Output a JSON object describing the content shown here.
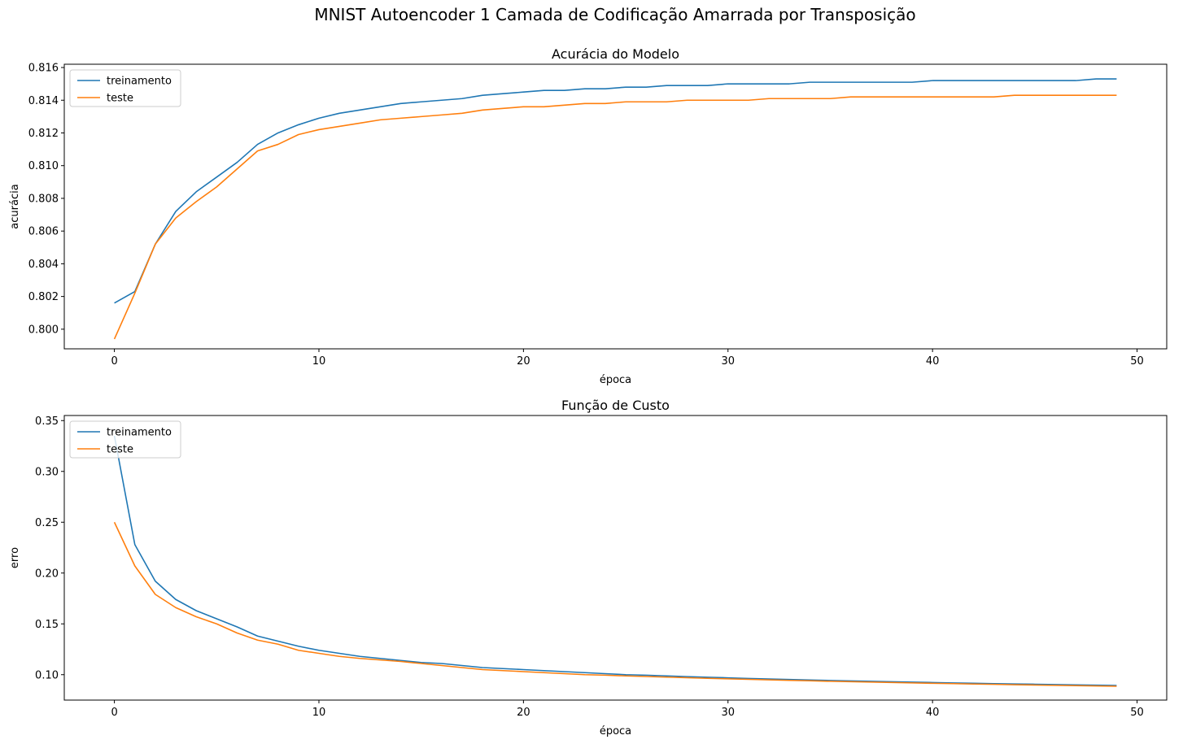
{
  "figure": {
    "suptitle": "MNIST Autoencoder 1 Camada de Codificação Amarrada por Transposição"
  },
  "colors": {
    "treinamento": "#1f77b4",
    "teste": "#ff7f0e"
  },
  "chart_data": [
    {
      "type": "line",
      "title": "Acurácia do Modelo",
      "xlabel": "época",
      "ylabel": "acurácia",
      "xlim": [
        -2.45,
        51.45
      ],
      "ylim": [
        0.7988,
        0.8162
      ],
      "xticks": [
        0,
        10,
        20,
        30,
        40,
        50
      ],
      "yticks": [
        0.8,
        0.802,
        0.804,
        0.806,
        0.808,
        0.81,
        0.812,
        0.814,
        0.816
      ],
      "ytick_labels": [
        "0.800",
        "0.802",
        "0.804",
        "0.806",
        "0.808",
        "0.810",
        "0.812",
        "0.814",
        "0.816"
      ],
      "grid": false,
      "legend": "upper-left",
      "x": [
        0,
        1,
        2,
        3,
        4,
        5,
        6,
        7,
        8,
        9,
        10,
        11,
        12,
        13,
        14,
        15,
        16,
        17,
        18,
        19,
        20,
        21,
        22,
        23,
        24,
        25,
        26,
        27,
        28,
        29,
        30,
        31,
        32,
        33,
        34,
        35,
        36,
        37,
        38,
        39,
        40,
        41,
        42,
        43,
        44,
        45,
        46,
        47,
        48,
        49
      ],
      "series": [
        {
          "name": "treinamento",
          "values": [
            0.8016,
            0.8023,
            0.8052,
            0.8072,
            0.8084,
            0.8093,
            0.8102,
            0.8113,
            0.812,
            0.8125,
            0.8129,
            0.8132,
            0.8134,
            0.8136,
            0.8138,
            0.8139,
            0.814,
            0.8141,
            0.8143,
            0.8144,
            0.8145,
            0.8146,
            0.8146,
            0.8147,
            0.8147,
            0.8148,
            0.8148,
            0.8149,
            0.8149,
            0.8149,
            0.815,
            0.815,
            0.815,
            0.815,
            0.8151,
            0.8151,
            0.8151,
            0.8151,
            0.8151,
            0.8151,
            0.8152,
            0.8152,
            0.8152,
            0.8152,
            0.8152,
            0.8152,
            0.8152,
            0.8152,
            0.8153,
            0.8153
          ]
        },
        {
          "name": "teste",
          "values": [
            0.7994,
            0.8022,
            0.8052,
            0.8068,
            0.8078,
            0.8087,
            0.8098,
            0.8109,
            0.8113,
            0.8119,
            0.8122,
            0.8124,
            0.8126,
            0.8128,
            0.8129,
            0.813,
            0.8131,
            0.8132,
            0.8134,
            0.8135,
            0.8136,
            0.8136,
            0.8137,
            0.8138,
            0.8138,
            0.8139,
            0.8139,
            0.8139,
            0.814,
            0.814,
            0.814,
            0.814,
            0.8141,
            0.8141,
            0.8141,
            0.8141,
            0.8142,
            0.8142,
            0.8142,
            0.8142,
            0.8142,
            0.8142,
            0.8142,
            0.8142,
            0.8143,
            0.8143,
            0.8143,
            0.8143,
            0.8143,
            0.8143
          ]
        }
      ]
    },
    {
      "type": "line",
      "title": "Função de Custo",
      "xlabel": "época",
      "ylabel": "erro",
      "xlim": [
        -2.45,
        51.45
      ],
      "ylim": [
        0.075,
        0.355
      ],
      "xticks": [
        0,
        10,
        20,
        30,
        40,
        50
      ],
      "yticks": [
        0.1,
        0.15,
        0.2,
        0.25,
        0.3,
        0.35
      ],
      "ytick_labels": [
        "0.10",
        "0.15",
        "0.20",
        "0.25",
        "0.30",
        "0.35"
      ],
      "grid": false,
      "legend": "upper-left",
      "x": [
        0,
        1,
        2,
        3,
        4,
        5,
        6,
        7,
        8,
        9,
        10,
        11,
        12,
        13,
        14,
        15,
        16,
        17,
        18,
        19,
        20,
        21,
        22,
        23,
        24,
        25,
        26,
        27,
        28,
        29,
        30,
        31,
        32,
        33,
        34,
        35,
        36,
        37,
        38,
        39,
        40,
        41,
        42,
        43,
        44,
        45,
        46,
        47,
        48,
        49
      ],
      "series": [
        {
          "name": "treinamento",
          "values": [
            0.335,
            0.228,
            0.192,
            0.174,
            0.163,
            0.155,
            0.147,
            0.138,
            0.133,
            0.128,
            0.124,
            0.121,
            0.118,
            0.116,
            0.114,
            0.112,
            0.111,
            0.109,
            0.107,
            0.106,
            0.105,
            0.104,
            0.103,
            0.102,
            0.101,
            0.1,
            0.0995,
            0.0988,
            0.0981,
            0.0975,
            0.0969,
            0.0963,
            0.0958,
            0.0953,
            0.0948,
            0.0943,
            0.0939,
            0.0935,
            0.0931,
            0.0927,
            0.0923,
            0.0919,
            0.0916,
            0.0912,
            0.0909,
            0.0906,
            0.0903,
            0.09,
            0.0897,
            0.0894
          ]
        },
        {
          "name": "teste",
          "values": [
            0.25,
            0.207,
            0.179,
            0.166,
            0.157,
            0.15,
            0.141,
            0.134,
            0.13,
            0.124,
            0.121,
            0.118,
            0.116,
            0.1145,
            0.113,
            0.111,
            0.109,
            0.107,
            0.105,
            0.104,
            0.103,
            0.102,
            0.101,
            0.1,
            0.0995,
            0.0988,
            0.0982,
            0.0976,
            0.097,
            0.0964,
            0.0959,
            0.0954,
            0.0949,
            0.0944,
            0.094,
            0.0935,
            0.0931,
            0.0927,
            0.0923,
            0.0919,
            0.0915,
            0.0912,
            0.0908,
            0.0905,
            0.0901,
            0.0898,
            0.0895,
            0.0892,
            0.0889,
            0.0886
          ]
        }
      ]
    }
  ]
}
